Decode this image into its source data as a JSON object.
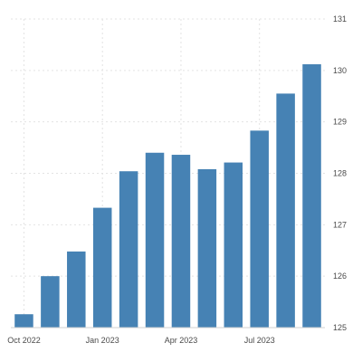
{
  "chart_data": {
    "type": "bar",
    "title": "",
    "xlabel": "",
    "ylabel": "",
    "categories": [
      "2022-10",
      "2022-11",
      "2022-12",
      "2023-01",
      "2023-02",
      "2023-03",
      "2023-04",
      "2023-05",
      "2023-06",
      "2023-07",
      "2023-08",
      "2023-09"
    ],
    "values": [
      125.26,
      126.0,
      126.48,
      127.33,
      128.04,
      128.4,
      128.36,
      128.08,
      128.21,
      128.83,
      129.55,
      130.12
    ],
    "ylim": [
      125,
      131
    ],
    "yticks": [
      "125",
      "126",
      "127",
      "128",
      "129",
      "130",
      "131"
    ],
    "y_axis_side": "right",
    "xticks": [
      {
        "category": "2022-10",
        "label": "Oct 2022"
      },
      {
        "category": "2023-01",
        "label": "Jan 2023"
      },
      {
        "category": "2023-04",
        "label": "Apr 2023"
      },
      {
        "category": "2023-07",
        "label": "Jul 2023"
      }
    ],
    "grid": true,
    "legend": "none",
    "bar_color": "#4682b4"
  }
}
